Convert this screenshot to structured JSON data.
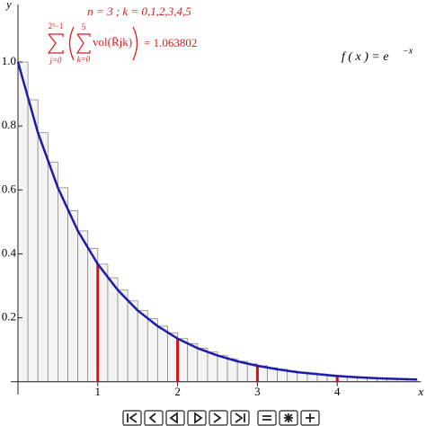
{
  "chart_data": {
    "type": "histogram",
    "parameters_label": "n = 3 ; k = 0,1,2,3,4,5",
    "sum_upper": "2³−1",
    "sum_lower": "j=0",
    "inner_upper": "5",
    "inner_lower": "k=0",
    "sum_term": "vol(R̄jk)",
    "sum_result": "= 1.063802",
    "function_label": "f ( x ) = e",
    "function_exponent": "−x",
    "x_label": "x",
    "y_label": "y",
    "bins": [
      0,
      0.125,
      0.25,
      0.375,
      0.5,
      0.625,
      0.75,
      0.875,
      1,
      1.125,
      1.25,
      1.375,
      1.5,
      1.625,
      1.75,
      1.875,
      2,
      2.125,
      2.25,
      2.375,
      2.5,
      2.625,
      2.75,
      2.875,
      3,
      3.125,
      3.25,
      3.375,
      3.5,
      3.625,
      3.75,
      3.875,
      4,
      4.125,
      4.25,
      4.375,
      4.5,
      4.625,
      4.75,
      4.875,
      5
    ],
    "values": [
      1,
      0.882,
      0.779,
      0.687,
      0.607,
      0.535,
      0.472,
      0.417,
      0.368,
      0.325,
      0.287,
      0.253,
      0.223,
      0.197,
      0.174,
      0.153,
      0.135,
      0.119,
      0.105,
      0.093,
      0.082,
      0.072,
      0.064,
      0.056,
      0.05,
      0.044,
      0.039,
      0.034,
      0.03,
      0.027,
      0.024,
      0.021,
      0.018,
      0.016,
      0.014,
      0.013,
      0.011,
      0.01,
      0.009,
      0.008
    ],
    "color": "#f4f4f4",
    "curve": {
      "x": [
        0,
        0.25,
        0.5,
        0.75,
        1,
        1.25,
        1.5,
        1.75,
        2,
        2.25,
        2.5,
        2.75,
        3,
        3.25,
        3.5,
        3.75,
        4,
        4.25,
        4.5,
        4.75,
        5
      ],
      "values": [
        1,
        0.779,
        0.607,
        0.472,
        0.368,
        0.287,
        0.223,
        0.174,
        0.135,
        0.105,
        0.082,
        0.064,
        0.05,
        0.039,
        0.03,
        0.024,
        0.018,
        0.014,
        0.011,
        0.009,
        0.007
      ],
      "color": "#1c1caa"
    },
    "markers": {
      "x": [
        1,
        2,
        3,
        4
      ],
      "values": [
        0.368,
        0.135,
        0.05,
        0.018
      ],
      "color": "#d01414"
    },
    "xlim": [
      0,
      5.05
    ],
    "ylim": [
      -0.04,
      1.18
    ],
    "xticks": [
      1,
      2,
      3,
      4
    ],
    "yticks": [
      0.2,
      0.4,
      0.6,
      0.8,
      {
        "value": 1,
        "label": "1.0"
      }
    ]
  }
}
